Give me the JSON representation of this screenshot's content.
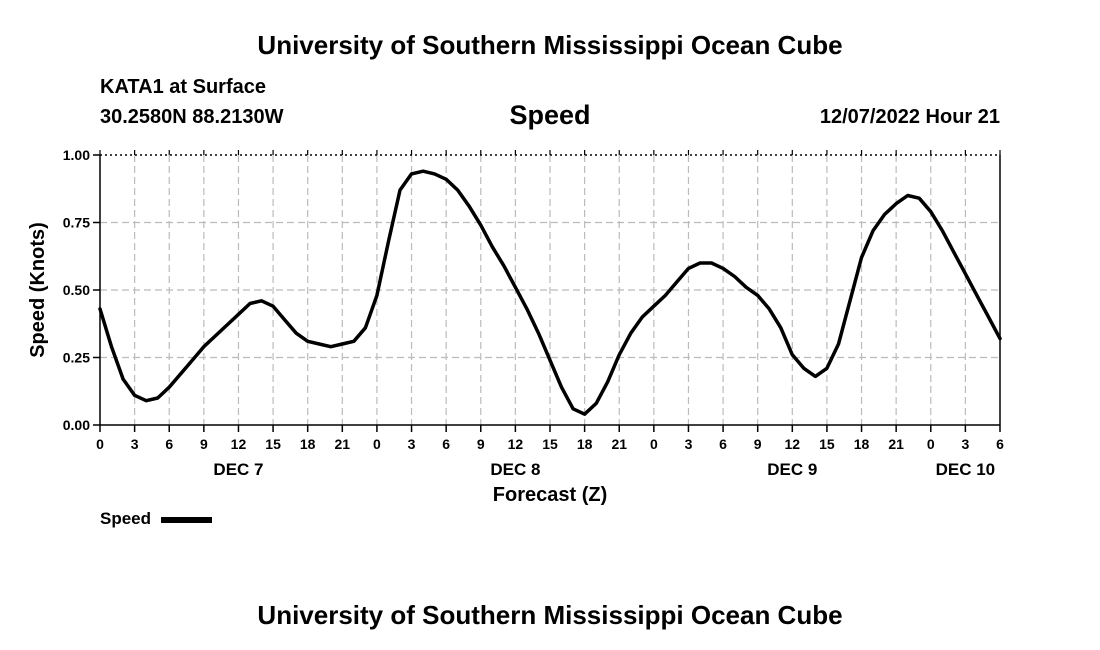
{
  "header": {
    "title": "University of Southern Mississippi Ocean Cube",
    "footer_title": "University of Southern Mississippi Ocean Cube",
    "station": "KATA1 at Surface",
    "coordinates": "30.2580N  88.2130W",
    "datetime": "12/07/2022 Hour 21"
  },
  "colors": {
    "line": "#000000",
    "grid": "#bbbbbb",
    "background": "#ffffff"
  },
  "chart_data": {
    "type": "line",
    "title": "Speed",
    "ylabel": "Speed (Knots)",
    "xlabel": "Forecast (Z)",
    "ylim": [
      0,
      1
    ],
    "xlim": [
      0,
      78
    ],
    "xunit": "hours since DEC 7 00Z",
    "yticks": [
      0,
      0.25,
      0.5,
      0.75,
      1.0
    ],
    "ytick_labels": [
      "0.00",
      "0.25",
      "0.50",
      "0.75",
      "1.00"
    ],
    "xtick_step": 3,
    "xtick_labels": [
      "0",
      "3",
      "6",
      "9",
      "12",
      "15",
      "18",
      "21",
      "0",
      "3",
      "6",
      "9",
      "12",
      "15",
      "18",
      "21",
      "0",
      "3",
      "6",
      "9",
      "12",
      "15",
      "18",
      "21",
      "0",
      "3",
      "6"
    ],
    "day_labels": [
      {
        "hour": 12,
        "label": "DEC 7"
      },
      {
        "hour": 36,
        "label": "DEC 8"
      },
      {
        "hour": 60,
        "label": "DEC 9"
      },
      {
        "hour": 75,
        "label": "DEC 10"
      }
    ],
    "grid": true,
    "legend": {
      "label": "Speed",
      "position": "bottom-left"
    },
    "series": [
      {
        "name": "Speed",
        "x": [
          0,
          1,
          2,
          3,
          4,
          5,
          6,
          7,
          8,
          9,
          10,
          11,
          12,
          13,
          14,
          15,
          16,
          17,
          18,
          19,
          20,
          21,
          22,
          23,
          24,
          25,
          26,
          27,
          28,
          29,
          30,
          31,
          32,
          33,
          34,
          35,
          36,
          37,
          38,
          39,
          40,
          41,
          42,
          43,
          44,
          45,
          46,
          47,
          48,
          49,
          50,
          51,
          52,
          53,
          54,
          55,
          56,
          57,
          58,
          59,
          60,
          61,
          62,
          63,
          64,
          65,
          66,
          67,
          68,
          69,
          70,
          71,
          72,
          73,
          74,
          75,
          76,
          77,
          78
        ],
        "values": [
          0.43,
          0.29,
          0.17,
          0.11,
          0.09,
          0.1,
          0.14,
          0.19,
          0.24,
          0.29,
          0.33,
          0.37,
          0.41,
          0.45,
          0.46,
          0.44,
          0.39,
          0.34,
          0.31,
          0.3,
          0.29,
          0.3,
          0.31,
          0.36,
          0.48,
          0.68,
          0.87,
          0.93,
          0.94,
          0.93,
          0.91,
          0.87,
          0.81,
          0.74,
          0.66,
          0.59,
          0.51,
          0.43,
          0.34,
          0.24,
          0.14,
          0.06,
          0.04,
          0.08,
          0.16,
          0.26,
          0.34,
          0.4,
          0.44,
          0.48,
          0.53,
          0.58,
          0.6,
          0.6,
          0.58,
          0.55,
          0.51,
          0.48,
          0.43,
          0.36,
          0.26,
          0.21,
          0.18,
          0.21,
          0.3,
          0.46,
          0.62,
          0.72,
          0.78,
          0.82,
          0.85,
          0.84,
          0.79,
          0.72,
          0.64,
          0.56,
          0.48,
          0.4,
          0.32
        ]
      }
    ]
  }
}
